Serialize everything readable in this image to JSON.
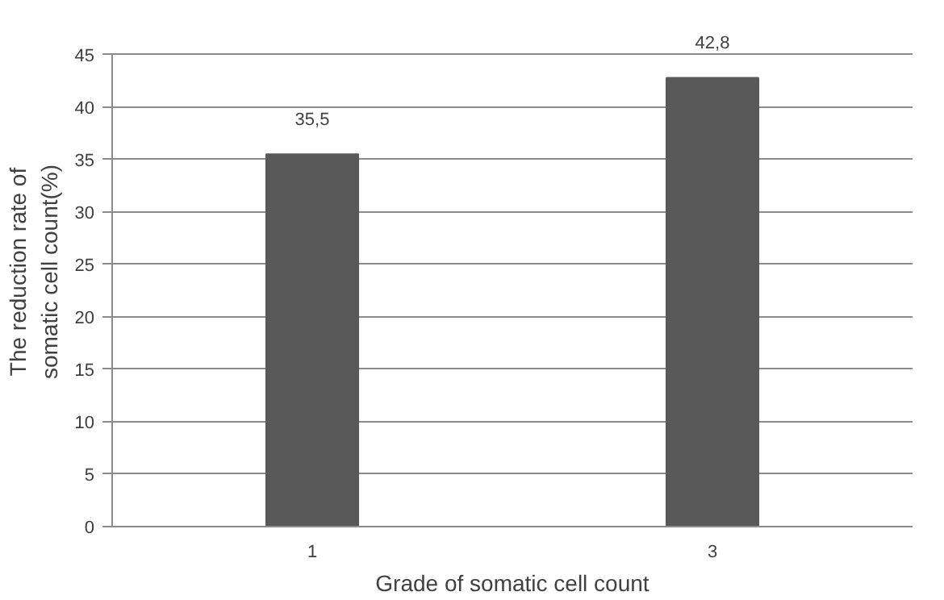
{
  "chart_data": {
    "type": "bar",
    "xlabel": "Grade of somatic cell count",
    "ylabel": "The reduction rate of\nsomatic cell count(%)",
    "categories": [
      "1",
      "3"
    ],
    "values": [
      35.5,
      42.8
    ],
    "value_labels": [
      "35,5",
      "42,8"
    ],
    "color": "#595959",
    "ylim": [
      0,
      45
    ],
    "yticks": [
      0,
      5,
      10,
      15,
      20,
      25,
      30,
      35,
      40,
      45
    ],
    "grid": "y"
  }
}
